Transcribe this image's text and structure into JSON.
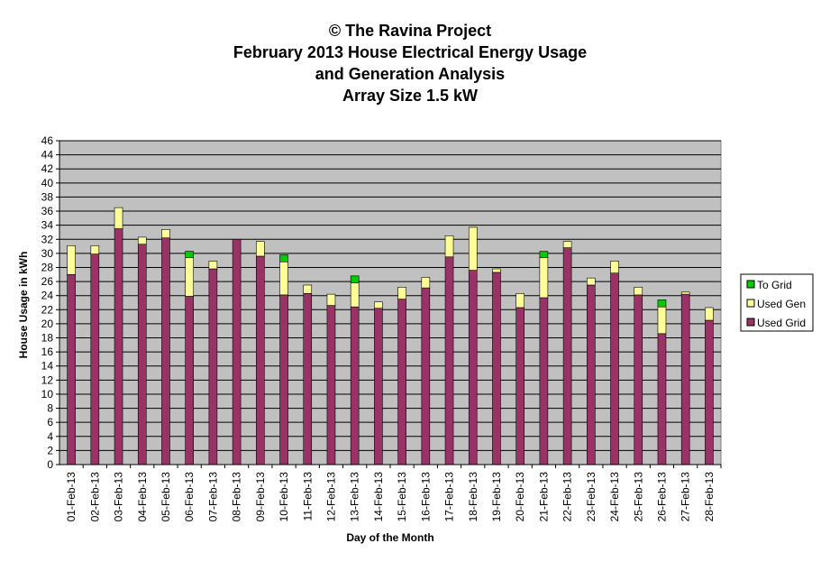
{
  "chart_data": {
    "type": "bar",
    "stacked": true,
    "title_lines": [
      "© The Ravina Project",
      "February 2013 House Electrical Energy Usage",
      "and Generation Analysis",
      "Array Size 1.5 kW"
    ],
    "xlabel": "Day of the Month",
    "ylabel": "House Usage in kWh",
    "ylim": [
      0,
      46
    ],
    "ytick_step": 2,
    "grid": true,
    "legend_position": "right",
    "categories": [
      "01-Feb-13",
      "02-Feb-13",
      "03-Feb-13",
      "04-Feb-13",
      "05-Feb-13",
      "06-Feb-13",
      "07-Feb-13",
      "08-Feb-13",
      "09-Feb-13",
      "10-Feb-13",
      "11-Feb-13",
      "12-Feb-13",
      "13-Feb-13",
      "14-Feb-13",
      "15-Feb-13",
      "16-Feb-13",
      "17-Feb-13",
      "18-Feb-13",
      "19-Feb-13",
      "20-Feb-13",
      "21-Feb-13",
      "22-Feb-13",
      "23-Feb-13",
      "24-Feb-13",
      "25-Feb-13",
      "26-Feb-13",
      "27-Feb-13",
      "28-Feb-13"
    ],
    "series": [
      {
        "name": "Used Grid",
        "color": "#993366",
        "values": [
          27.0,
          29.9,
          33.5,
          31.3,
          32.2,
          23.9,
          27.8,
          32.0,
          29.6,
          24.1,
          24.3,
          22.6,
          22.4,
          22.2,
          23.5,
          25.1,
          29.5,
          27.6,
          27.3,
          22.3,
          23.7,
          30.8,
          25.5,
          27.2,
          24.1,
          18.6,
          24.2,
          20.5
        ]
      },
      {
        "name": "Used Gen",
        "color": "#FFFF99",
        "values": [
          4.1,
          1.2,
          3.0,
          1.0,
          1.2,
          5.5,
          1.1,
          0.0,
          2.1,
          4.7,
          1.2,
          1.6,
          3.4,
          0.9,
          1.7,
          1.5,
          3.0,
          6.1,
          0.5,
          2.0,
          5.7,
          0.9,
          1.0,
          1.7,
          1.1,
          3.8,
          0.3,
          1.8
        ]
      },
      {
        "name": "To Grid",
        "color": "#00CC00",
        "values": [
          0,
          0,
          0,
          0,
          0,
          0.9,
          0,
          0,
          0,
          1.0,
          0,
          0,
          1.0,
          0,
          0,
          0,
          0,
          0,
          0,
          0,
          0.9,
          0,
          0,
          0,
          0,
          1.0,
          0,
          0
        ]
      }
    ],
    "legend_order": [
      "To Grid",
      "Used Gen",
      "Used Grid"
    ],
    "plot_background": "#C0C0C0"
  }
}
